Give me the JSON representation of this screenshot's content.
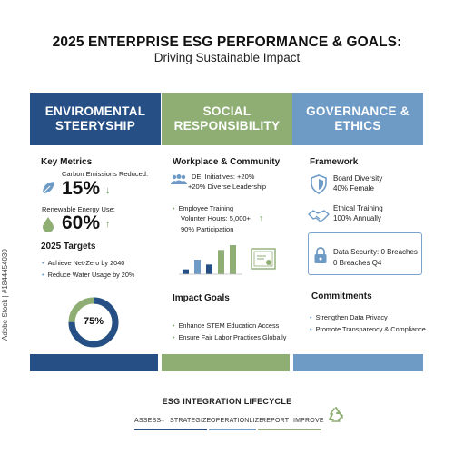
{
  "title": "2025 ENTERPRISE ESG PERFORMANCE & GOALS:",
  "subtitle": "Driving Sustainable Impact",
  "columns": {
    "environmental": {
      "header": "ENVIROMENTAL STEERYSHIP",
      "key_metrics_label": "Key Metrics",
      "carbon_label": "Carbon Emissions Reduced:",
      "carbon_value": "15%",
      "renewable_label": "Renewable Energy Use:",
      "renewable_value": "60%",
      "targets_label": "2025 Targets",
      "targets": [
        "Achieve Net-Zero by 2040",
        "Reduce Water Usage by 20%"
      ],
      "donut_label": "75%",
      "donut_fraction": 0.75
    },
    "social": {
      "header": "SOCIAL RESPONSIBILITY",
      "workplace_label": "Workplace & Community",
      "dei_line1": "DEI Initiatives: +20%",
      "dei_line2": "+20% Diverse Leadership",
      "training_line1": "Employee Training",
      "training_line2": "Volunter Hours: 5,000+",
      "training_line3": "90% Participation",
      "impact_label": "Impact Goals",
      "impact": [
        "Enhance STEM Education Access",
        "Ensure Fair Labor Practices Globally"
      ],
      "bar_values": [
        1,
        3,
        2,
        5,
        6
      ]
    },
    "governance": {
      "header": "GOVERNANCE & ETHICS",
      "framework_label": "Framework",
      "board_line1": "Board Diversity",
      "board_line2": "40% Female",
      "ethics_line1": "Ethical Training",
      "ethics_line2": "100% Annually",
      "data_line1": "Data Security: 0 Breaches",
      "data_line2": "0 Breaches Q4",
      "commitments_label": "Commitments",
      "commitments": [
        "Strengthen Data Privacy",
        "Promote Transparency & Compliance"
      ]
    }
  },
  "lifecycle": {
    "title": "ESG INTEGRATION LIFECYCLE",
    "steps": [
      "ASSESS",
      "STRATEGIZE",
      "OPERATIONLIZE",
      "REPORT",
      "IMPROVE"
    ],
    "arrow": "→"
  },
  "watermark": "Adobe Stock | #1844454030",
  "colors": {
    "environmental": "#264f86",
    "social": "#8fae74",
    "governance": "#6e9ac6"
  },
  "icons": [
    "leaf-icon",
    "drop-icon",
    "people-icon",
    "bar-chart-icon",
    "certificate-icon",
    "shield-icon",
    "handshake-icon",
    "lock-icon",
    "recycle-icon"
  ]
}
